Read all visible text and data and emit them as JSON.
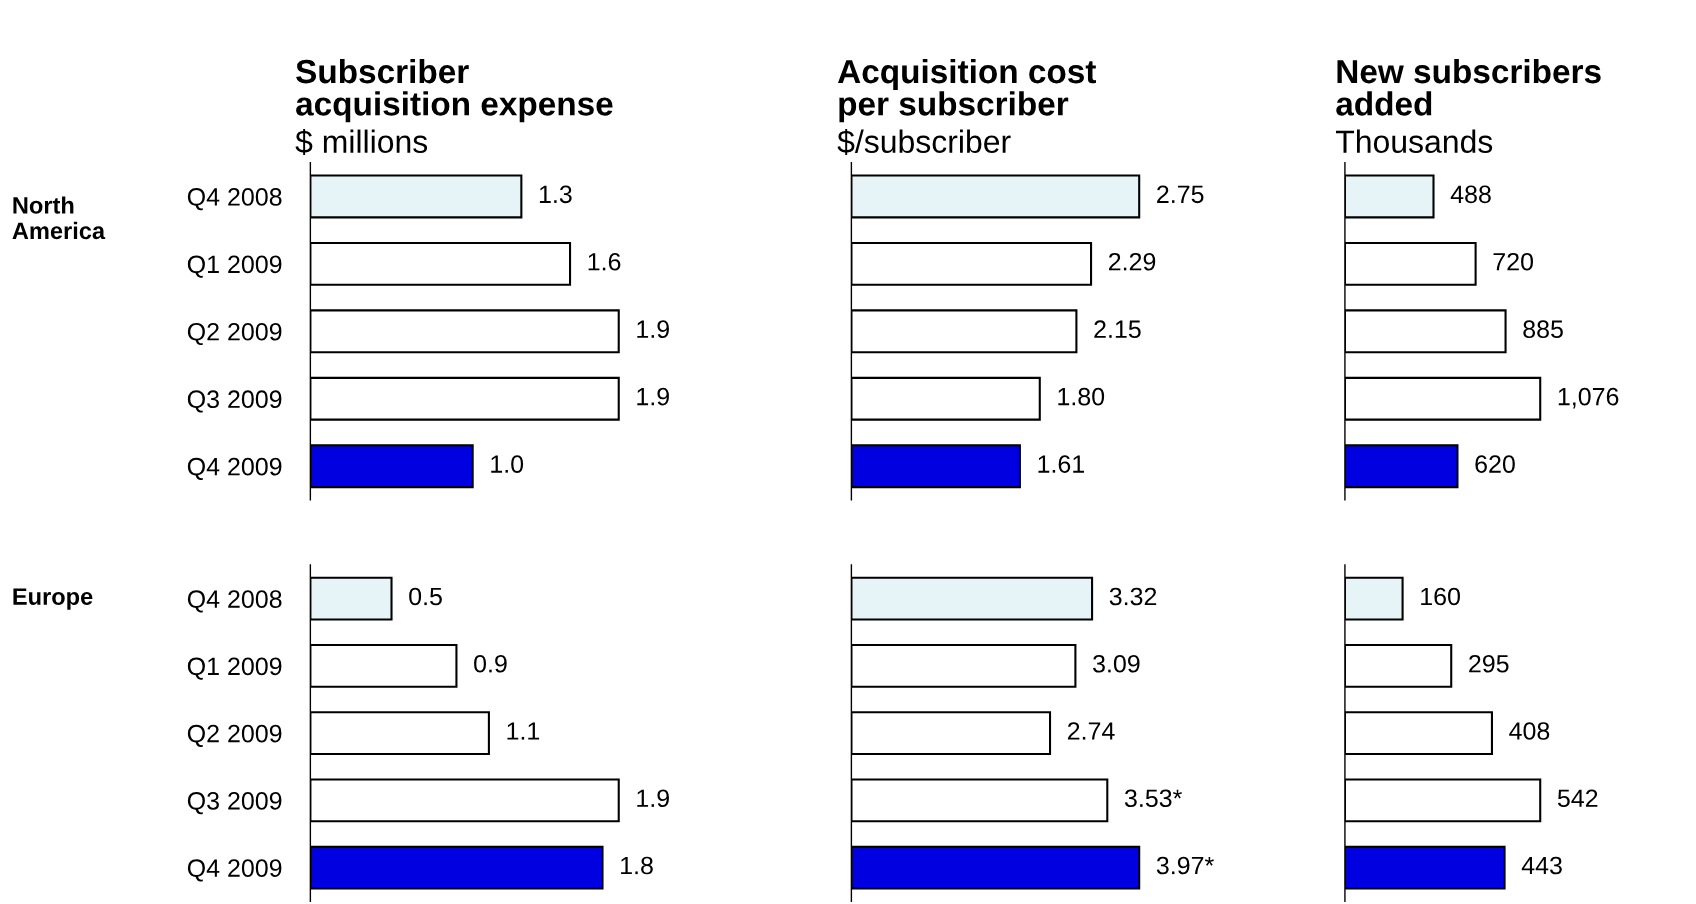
{
  "chart_data": [
    {
      "type": "bar",
      "orientation": "horizontal",
      "title": "Subscriber\nacquisition expense",
      "subtitle": "$ millions",
      "ylabel": "North America",
      "tick_labels": "y",
      "categories": [
        "Q4 2008",
        "Q1 2009",
        "Q2 2009",
        "Q3 2009",
        "Q4 2009"
      ],
      "values": [
        1.3,
        1.6,
        1.9,
        1.9,
        1.0
      ],
      "value_labels": [
        "1.3",
        "1.6",
        "1.9",
        "1.9",
        "1.0"
      ],
      "colors": [
        "#e6f4f8",
        "#ffffff",
        "#ffffff",
        "#ffffff",
        "#0000e0"
      ]
    },
    {
      "type": "bar",
      "orientation": "horizontal",
      "title": "Acquisition cost\nper subscriber",
      "subtitle": "$/subscriber",
      "tick_labels": false,
      "categories": [
        null,
        null,
        null,
        null,
        null
      ],
      "values": [
        2.75,
        2.29,
        2.15,
        1.8,
        1.61
      ],
      "value_labels": [
        "2.75",
        "2.29",
        "2.15",
        "1.80",
        "1.61"
      ],
      "colors": [
        "#e6f4f8",
        "#ffffff",
        "#ffffff",
        "#ffffff",
        "#0000e0"
      ]
    },
    {
      "type": "bar",
      "orientation": "horizontal",
      "title": "New subscribers\nadded",
      "subtitle": "Thousands",
      "tick_labels": false,
      "categories": [
        null,
        null,
        null,
        null,
        null
      ],
      "values": [
        488,
        720,
        885,
        1076,
        620
      ],
      "value_labels": [
        "488",
        "720",
        "885",
        "1,076",
        "620"
      ],
      "colors": [
        "#e6f4f8",
        "#ffffff",
        "#ffffff",
        "#ffffff",
        "#0000e0"
      ]
    },
    {
      "type": "bar",
      "orientation": "horizontal",
      "ylabel": "Europe",
      "tick_labels": "y",
      "categories": [
        "Q4 2008",
        "Q1 2009",
        "Q2 2009",
        "Q3 2009",
        "Q4 2009"
      ],
      "values": [
        0.5,
        0.9,
        1.1,
        1.9,
        1.8
      ],
      "value_labels": [
        "0.5",
        "0.9",
        "1.1",
        "1.9",
        "1.8"
      ],
      "colors": [
        "#e6f4f8",
        "#ffffff",
        "#ffffff",
        "#ffffff",
        "#0000e0"
      ]
    },
    {
      "type": "bar",
      "orientation": "horizontal",
      "tick_labels": false,
      "categories": [
        null,
        null,
        null,
        null,
        null
      ],
      "values": [
        3.32,
        3.09,
        2.74,
        3.53,
        3.97
      ],
      "value_labels": [
        "3.32",
        "3.09",
        "2.74",
        "3.53*",
        "3.97*"
      ],
      "colors": [
        "#e6f4f8",
        "#ffffff",
        "#ffffff",
        "#ffffff",
        "#0000e0"
      ]
    },
    {
      "type": "bar",
      "orientation": "horizontal",
      "tick_labels": false,
      "categories": [
        null,
        null,
        null,
        null,
        null
      ],
      "values": [
        160,
        295,
        408,
        542,
        443
      ],
      "value_labels": [
        "160",
        "295",
        "408",
        "542",
        "443"
      ],
      "colors": [
        "#e6f4f8",
        "#ffffff",
        "#ffffff",
        "#ffffff",
        "#0000e0"
      ]
    }
  ]
}
